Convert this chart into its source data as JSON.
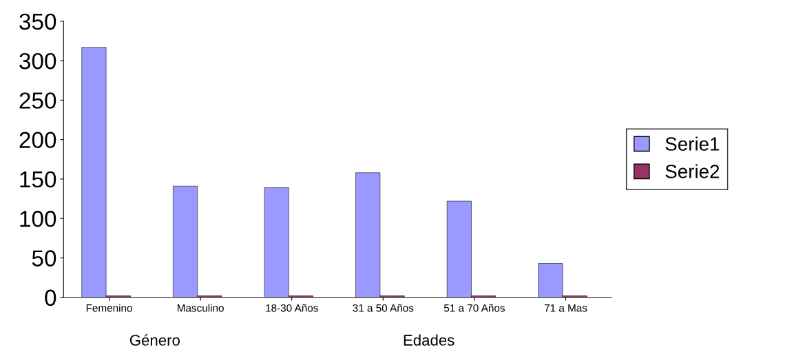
{
  "chart_data": {
    "type": "bar",
    "categories": [
      "Femenino",
      "Masculino",
      "18-30 Años",
      "31 a 50 Años",
      "51 a 70 Años",
      "71 a Mas"
    ],
    "series": [
      {
        "name": "Serie1",
        "color": "#9999ff",
        "values": [
          317,
          141,
          139,
          158,
          122,
          43
        ]
      },
      {
        "name": "Serie2",
        "color": "#993366",
        "values": [
          2,
          2,
          2,
          2,
          2,
          2
        ]
      }
    ],
    "ylim": [
      0,
      350
    ],
    "yticks": [
      0,
      50,
      100,
      150,
      200,
      250,
      300,
      350
    ],
    "annotations": [
      "Género",
      "Edades"
    ],
    "grid": false,
    "legend": "right"
  }
}
